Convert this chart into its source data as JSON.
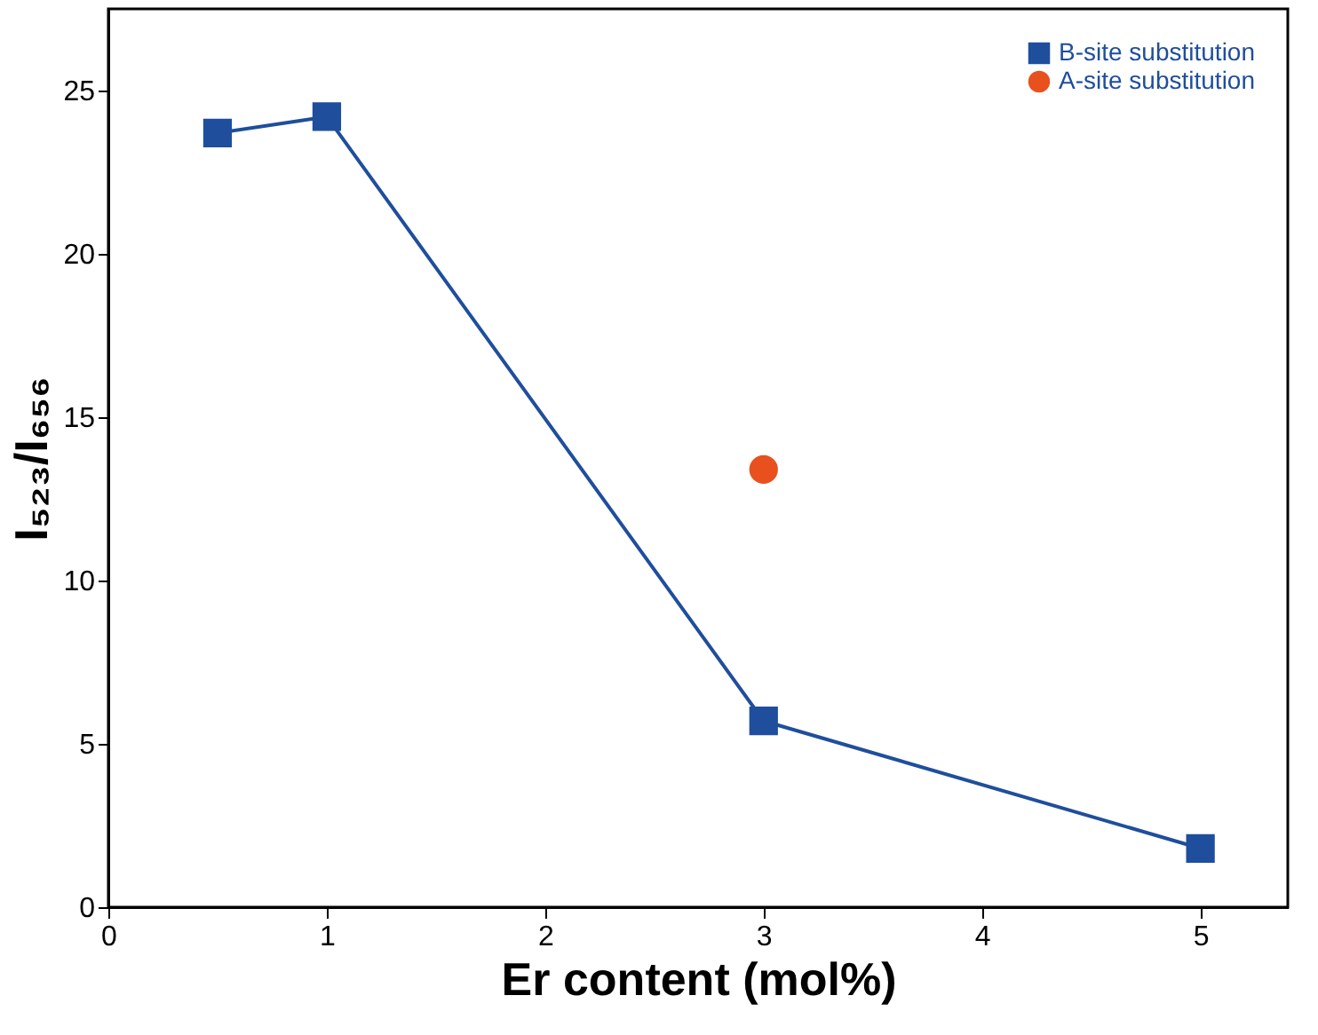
{
  "chart_data": {
    "type": "line",
    "xlabel": "Er content (mol%)",
    "ylabel": "I₅₂₃/I₆₅₆",
    "xlim": [
      0,
      5.4
    ],
    "xticks": [
      0,
      1,
      2,
      3,
      4,
      5
    ],
    "ylim": [
      0,
      27.5
    ],
    "yticks": [
      0,
      5,
      10,
      15,
      20,
      25
    ],
    "grid": false,
    "legend": "top right",
    "series": [
      {
        "name": "B-site substitution",
        "marker": "square",
        "color": "#1f4e9c",
        "x": [
          0.5,
          1,
          3,
          5
        ],
        "values": [
          23.7,
          24.2,
          5.7,
          1.8
        ]
      },
      {
        "name": "A-site substitution",
        "type": "scatter",
        "marker": "circle",
        "color": "#e8501e",
        "x": [
          3
        ],
        "values": [
          13.4
        ]
      }
    ]
  }
}
